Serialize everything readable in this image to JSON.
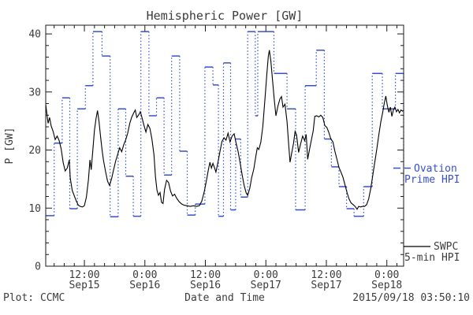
{
  "title": "Hemispheric Power [GW]",
  "footer": {
    "left": "Plot: CCMC",
    "center": "Date and Time",
    "right": "2015/09/18 03:50:10"
  },
  "legend": {
    "ovation": {
      "line1": "Ovation",
      "line2": "Prime HPI",
      "color": "#3750cc"
    },
    "swpc": {
      "line1": "SWPC",
      "line2": "5-min HPI",
      "color": "#000000"
    }
  },
  "axes": {
    "y": {
      "label": "P [GW]",
      "range": [
        0,
        41.5
      ],
      "major_ticks": [
        0,
        10,
        20,
        30,
        40
      ],
      "minor_step": 2
    },
    "x": {
      "label": "Date and Time",
      "range_hours": [
        4.33,
        75.33
      ],
      "minor_step_hours": 2,
      "major_ticks": [
        {
          "t": 12,
          "time": "12:00",
          "date": "Sep15"
        },
        {
          "t": 24,
          "time": "0:00",
          "date": "Sep16"
        },
        {
          "t": 36,
          "time": "12:00",
          "date": "Sep16"
        },
        {
          "t": 48,
          "time": "0:00",
          "date": "Sep17"
        },
        {
          "t": 60,
          "time": "12:00",
          "date": "Sep17"
        },
        {
          "t": 72,
          "time": "0:00",
          "date": "Sep18"
        }
      ]
    }
  },
  "chart_data": {
    "type": "line",
    "title": "Hemispheric Power [GW]",
    "xlabel": "Date and Time",
    "ylabel": "P [GW]",
    "x_unit": "hours since 2015-09-15 00:00 UT",
    "xlim": [
      4.33,
      75.33
    ],
    "ylim": [
      0,
      41.5
    ],
    "grid": false,
    "series": [
      {
        "name": "SWPC 5-min HPI",
        "style": "solid",
        "color": "#000000",
        "points": [
          [
            4.35,
            27.8
          ],
          [
            4.6,
            26.0
          ],
          [
            4.8,
            24.6
          ],
          [
            5.1,
            25.6
          ],
          [
            5.4,
            24.2
          ],
          [
            5.8,
            23.2
          ],
          [
            6.2,
            21.8
          ],
          [
            6.6,
            22.4
          ],
          [
            7.0,
            21.6
          ],
          [
            7.4,
            20.2
          ],
          [
            7.8,
            17.8
          ],
          [
            8.2,
            16.4
          ],
          [
            8.6,
            16.9
          ],
          [
            9.0,
            18.3
          ],
          [
            9.2,
            15.2
          ],
          [
            9.6,
            13.0
          ],
          [
            10.0,
            12.1
          ],
          [
            10.4,
            11.2
          ],
          [
            10.8,
            10.5
          ],
          [
            11.2,
            10.3
          ],
          [
            11.6,
            10.2
          ],
          [
            12.0,
            10.4
          ],
          [
            12.4,
            11.9
          ],
          [
            12.8,
            14.9
          ],
          [
            13.1,
            18.3
          ],
          [
            13.35,
            16.6
          ],
          [
            13.7,
            20.2
          ],
          [
            14.0,
            23.4
          ],
          [
            14.3,
            25.4
          ],
          [
            14.6,
            26.8
          ],
          [
            14.9,
            24.9
          ],
          [
            15.2,
            22.4
          ],
          [
            15.5,
            20.1
          ],
          [
            15.8,
            18.2
          ],
          [
            16.2,
            16.3
          ],
          [
            16.6,
            14.6
          ],
          [
            17.0,
            13.9
          ],
          [
            17.4,
            15.1
          ],
          [
            17.8,
            16.6
          ],
          [
            18.2,
            18.1
          ],
          [
            18.6,
            19.2
          ],
          [
            19.0,
            20.4
          ],
          [
            19.4,
            19.7
          ],
          [
            19.8,
            20.9
          ],
          [
            20.2,
            21.8
          ],
          [
            20.6,
            22.9
          ],
          [
            21.0,
            24.6
          ],
          [
            21.4,
            25.7
          ],
          [
            21.8,
            26.4
          ],
          [
            22.1,
            26.9
          ],
          [
            22.4,
            25.6
          ],
          [
            22.8,
            26.1
          ],
          [
            23.1,
            26.6
          ],
          [
            23.4,
            25.7
          ],
          [
            23.8,
            24.3
          ],
          [
            24.2,
            23.1
          ],
          [
            24.6,
            24.4
          ],
          [
            25.0,
            23.7
          ],
          [
            25.4,
            21.9
          ],
          [
            25.8,
            19.2
          ],
          [
            26.1,
            15.4
          ],
          [
            26.4,
            13.1
          ],
          [
            26.7,
            12.2
          ],
          [
            27.0,
            12.7
          ],
          [
            27.3,
            11.0
          ],
          [
            27.6,
            10.8
          ],
          [
            27.9,
            13.2
          ],
          [
            28.3,
            14.8
          ],
          [
            28.7,
            14.4
          ],
          [
            29.1,
            12.9
          ],
          [
            29.5,
            12.1
          ],
          [
            29.9,
            12.4
          ],
          [
            30.3,
            11.7
          ],
          [
            30.8,
            11.1
          ],
          [
            31.3,
            10.7
          ],
          [
            31.8,
            10.5
          ],
          [
            32.4,
            10.4
          ],
          [
            33.0,
            10.3
          ],
          [
            33.6,
            10.4
          ],
          [
            34.2,
            10.3
          ],
          [
            34.8,
            10.4
          ],
          [
            35.3,
            11.2
          ],
          [
            35.8,
            12.9
          ],
          [
            36.2,
            14.7
          ],
          [
            36.6,
            16.6
          ],
          [
            36.9,
            17.9
          ],
          [
            37.2,
            16.9
          ],
          [
            37.5,
            17.7
          ],
          [
            37.8,
            17.0
          ],
          [
            38.1,
            16.2
          ],
          [
            38.5,
            17.9
          ],
          [
            38.9,
            19.8
          ],
          [
            39.3,
            21.5
          ],
          [
            39.7,
            22.1
          ],
          [
            40.1,
            21.7
          ],
          [
            40.5,
            22.9
          ],
          [
            40.9,
            21.4
          ],
          [
            41.3,
            22.4
          ],
          [
            41.7,
            22.8
          ],
          [
            42.1,
            21.2
          ],
          [
            42.5,
            19.7
          ],
          [
            42.9,
            17.8
          ],
          [
            43.3,
            15.7
          ],
          [
            43.7,
            13.9
          ],
          [
            44.1,
            12.6
          ],
          [
            44.4,
            12.2
          ],
          [
            44.8,
            13.4
          ],
          [
            45.2,
            15.3
          ],
          [
            45.6,
            16.7
          ],
          [
            46.0,
            18.9
          ],
          [
            46.3,
            20.4
          ],
          [
            46.6,
            20.1
          ],
          [
            47.0,
            21.3
          ],
          [
            47.4,
            24.1
          ],
          [
            47.8,
            28.6
          ],
          [
            48.2,
            33.1
          ],
          [
            48.5,
            36.2
          ],
          [
            48.7,
            37.2
          ],
          [
            49.0,
            35.3
          ],
          [
            49.3,
            32.2
          ],
          [
            49.7,
            28.4
          ],
          [
            50.0,
            25.9
          ],
          [
            50.4,
            27.6
          ],
          [
            50.8,
            28.8
          ],
          [
            51.1,
            29.2
          ],
          [
            51.4,
            27.4
          ],
          [
            51.8,
            27.9
          ],
          [
            52.2,
            24.9
          ],
          [
            52.5,
            21.3
          ],
          [
            52.8,
            17.9
          ],
          [
            53.1,
            19.4
          ],
          [
            53.5,
            21.2
          ],
          [
            53.8,
            23.2
          ],
          [
            54.1,
            22.6
          ],
          [
            54.5,
            19.6
          ],
          [
            54.9,
            21.1
          ],
          [
            55.3,
            22.4
          ],
          [
            55.7,
            21.6
          ],
          [
            56.0,
            22.7
          ],
          [
            56.3,
            18.4
          ],
          [
            56.7,
            20.3
          ],
          [
            57.0,
            21.6
          ],
          [
            57.4,
            23.3
          ],
          [
            57.7,
            25.8
          ],
          [
            58.1,
            25.9
          ],
          [
            58.5,
            25.7
          ],
          [
            58.9,
            26.0
          ],
          [
            59.3,
            25.6
          ],
          [
            59.7,
            24.2
          ],
          [
            60.1,
            23.9
          ],
          [
            60.5,
            23.0
          ],
          [
            60.9,
            21.9
          ],
          [
            61.3,
            21.4
          ],
          [
            61.7,
            19.8
          ],
          [
            62.1,
            18.4
          ],
          [
            62.5,
            17.0
          ],
          [
            62.9,
            16.2
          ],
          [
            63.3,
            15.3
          ],
          [
            63.7,
            14.0
          ],
          [
            64.1,
            12.7
          ],
          [
            64.5,
            11.6
          ],
          [
            64.9,
            10.9
          ],
          [
            65.3,
            10.6
          ],
          [
            65.7,
            10.3
          ],
          [
            66.1,
            9.8
          ],
          [
            66.4,
            10.3
          ],
          [
            66.8,
            10.2
          ],
          [
            67.2,
            10.3
          ],
          [
            67.6,
            10.3
          ],
          [
            68.0,
            10.6
          ],
          [
            68.4,
            11.6
          ],
          [
            68.8,
            13.3
          ],
          [
            69.2,
            15.6
          ],
          [
            69.6,
            17.9
          ],
          [
            70.0,
            20.1
          ],
          [
            70.4,
            22.6
          ],
          [
            70.8,
            24.8
          ],
          [
            71.2,
            26.6
          ],
          [
            71.5,
            28.1
          ],
          [
            71.8,
            29.3
          ],
          [
            72.1,
            27.7
          ],
          [
            72.4,
            26.5
          ],
          [
            72.7,
            27.4
          ],
          [
            73.0,
            25.8
          ],
          [
            73.3,
            26.9
          ],
          [
            73.6,
            27.4
          ],
          [
            73.9,
            26.6
          ],
          [
            74.2,
            27.0
          ],
          [
            74.5,
            26.4
          ],
          [
            74.8,
            26.9
          ],
          [
            75.1,
            26.7
          ],
          [
            75.3,
            26.8
          ]
        ]
      },
      {
        "name": "Ovation Prime HPI",
        "style": "steps-with-dotted-risers",
        "color": "#3750cc",
        "segments": [
          [
            4.35,
            6.0,
            8.7
          ],
          [
            6.0,
            7.6,
            21.2
          ],
          [
            7.6,
            9.1,
            29.0
          ],
          [
            9.1,
            10.6,
            9.9
          ],
          [
            10.6,
            12.2,
            27.1
          ],
          [
            12.2,
            13.7,
            31.1
          ],
          [
            13.7,
            15.5,
            40.4
          ],
          [
            15.5,
            17.1,
            36.2
          ],
          [
            17.1,
            18.7,
            8.5
          ],
          [
            18.7,
            20.2,
            27.1
          ],
          [
            20.2,
            21.7,
            15.5
          ],
          [
            21.7,
            23.2,
            8.6
          ],
          [
            23.2,
            24.8,
            40.4
          ],
          [
            24.8,
            26.3,
            25.9
          ],
          [
            26.3,
            27.8,
            29.0
          ],
          [
            27.8,
            29.3,
            15.7
          ],
          [
            29.3,
            30.9,
            36.2
          ],
          [
            30.9,
            32.4,
            19.8
          ],
          [
            32.4,
            34.0,
            8.8
          ],
          [
            34.0,
            35.9,
            10.7
          ],
          [
            35.9,
            37.5,
            34.3
          ],
          [
            37.5,
            38.6,
            31.2
          ],
          [
            38.6,
            39.6,
            8.6
          ],
          [
            39.6,
            41.0,
            35.0
          ],
          [
            41.0,
            42.0,
            9.7
          ],
          [
            42.0,
            43.0,
            21.9
          ],
          [
            43.0,
            44.4,
            11.9
          ],
          [
            44.4,
            45.9,
            40.4
          ],
          [
            45.9,
            46.4,
            25.9
          ],
          [
            46.4,
            49.6,
            40.4
          ],
          [
            49.6,
            52.2,
            33.2
          ],
          [
            52.2,
            53.9,
            27.1
          ],
          [
            53.9,
            55.8,
            9.7
          ],
          [
            55.8,
            58.0,
            31.1
          ],
          [
            58.0,
            59.6,
            37.2
          ],
          [
            59.6,
            61.0,
            21.9
          ],
          [
            61.0,
            62.5,
            17.1
          ],
          [
            62.5,
            64.0,
            13.7
          ],
          [
            64.0,
            65.5,
            9.9
          ],
          [
            65.5,
            67.4,
            8.6
          ],
          [
            67.4,
            69.1,
            13.7
          ],
          [
            69.1,
            71.1,
            33.2
          ],
          [
            71.1,
            73.7,
            27.1
          ],
          [
            73.7,
            75.33,
            33.2
          ],
          [
            75.3,
            75.33,
            13.9
          ]
        ]
      }
    ]
  }
}
